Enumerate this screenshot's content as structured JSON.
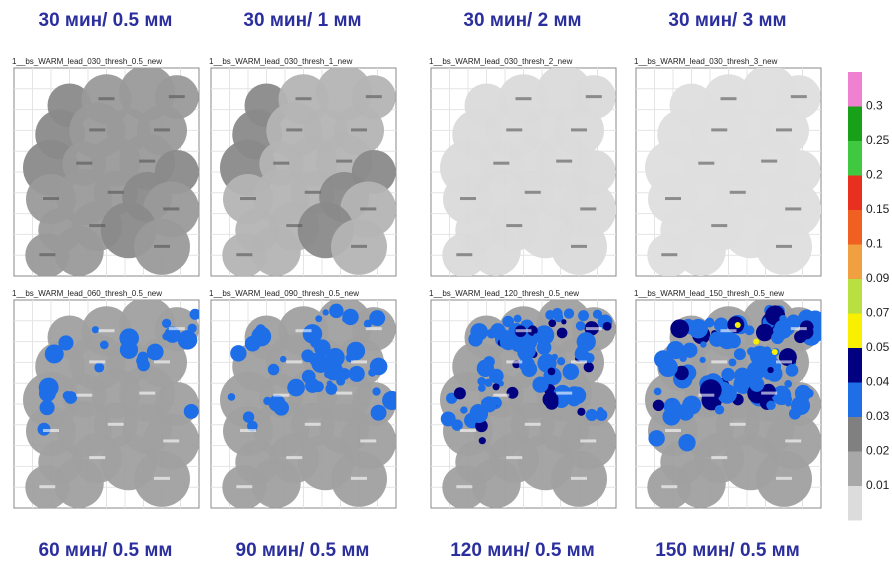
{
  "top_labels": [
    "30 мин/ 0.5 мм",
    "30 мин/ 1 мм",
    "30 мин/ 2 мм",
    "30 мин/ 3 мм"
  ],
  "bottom_labels": [
    "60 мин/ 0.5 мм",
    "90 мин/ 0.5 мм",
    "120 мин/ 0.5 мм",
    "150 мин/ 0.5 мм"
  ],
  "panels": [
    {
      "title": "1__bs_WARM_lead_030_thresh_0.5_new"
    },
    {
      "title": "1__bs_WARM_lead_030_thresh_1_new"
    },
    {
      "title": "1__bs_WARM_lead_030_thresh_2_new"
    },
    {
      "title": "1__bs_WARM_lead_030_thresh_3_new"
    },
    {
      "title": "1__bs_WARM_lead_060_thresh_0.5_new"
    },
    {
      "title": "1__bs_WARM_lead_090_thresh_0.5_new"
    },
    {
      "title": "1__bs_WARM_lead_120_thresh_0.5_new"
    },
    {
      "title": "1__bs_WARM_lead_150_thresh_0.5_new"
    }
  ],
  "colorbar": {
    "labels": [
      "0.3",
      "0.25",
      "0.2",
      "0.15",
      "0.1",
      "0.09",
      "0.07",
      "0.05",
      "0.04",
      "0.03",
      "0.02",
      "0.01"
    ],
    "colors": [
      "#f080d0",
      "#18a018",
      "#40c840",
      "#e83020",
      "#f06020",
      "#f0a040",
      "#b8e040",
      "#f8f000",
      "#000080",
      "#1e6ee8",
      "#808080",
      "#a8a8a8",
      "#dcdcdc"
    ]
  }
}
